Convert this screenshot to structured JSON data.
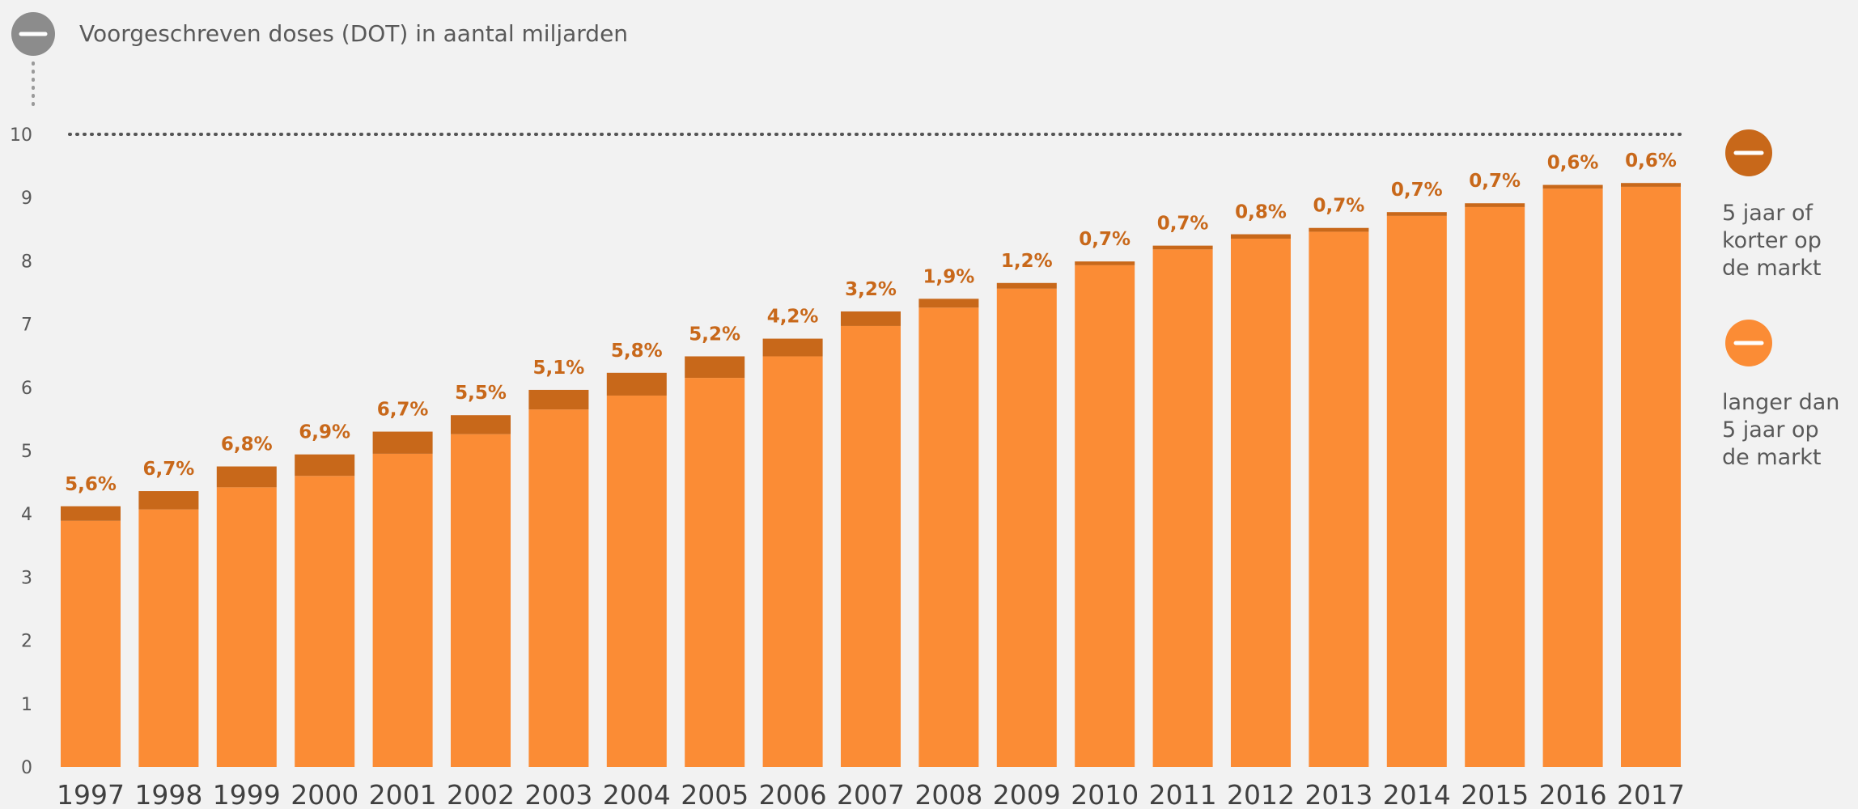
{
  "chart_data": {
    "type": "bar",
    "title": "Voorgeschreven doses (DOT) in aantal miljarden",
    "xlabel": "",
    "ylabel": "",
    "ylim": [
      0,
      10
    ],
    "yticks": [
      "0",
      "1",
      "2",
      "3",
      "4",
      "5",
      "6",
      "7",
      "8",
      "9",
      "10"
    ],
    "stacked": true,
    "grid": false,
    "legend_position": "right",
    "categories": [
      "1997",
      "1998",
      "1999",
      "2000",
      "2001",
      "2002",
      "2003",
      "2004",
      "2005",
      "2006",
      "2007",
      "2008",
      "2009",
      "2010",
      "2011",
      "2012",
      "2013",
      "2014",
      "2015",
      "2016",
      "2017"
    ],
    "series": [
      {
        "name": "langer dan 5 jaar op de markt",
        "color": "#fb8c35",
        "values": [
          3.89,
          4.07,
          4.42,
          4.6,
          4.95,
          5.26,
          5.65,
          5.87,
          6.15,
          6.49,
          6.97,
          7.26,
          7.56,
          7.93,
          8.18,
          8.35,
          8.46,
          8.71,
          8.85,
          9.14,
          9.17
        ]
      },
      {
        "name": "5 jaar of korter op de markt",
        "color": "#c8681a",
        "values": [
          0.23,
          0.29,
          0.33,
          0.34,
          0.35,
          0.3,
          0.31,
          0.36,
          0.34,
          0.28,
          0.23,
          0.14,
          0.09,
          0.06,
          0.06,
          0.07,
          0.06,
          0.06,
          0.06,
          0.06,
          0.06
        ]
      }
    ],
    "data_labels": [
      "5,6%",
      "6,7%",
      "6,8%",
      "6,9%",
      "6,7%",
      "5,5%",
      "5,1%",
      "5,8%",
      "5,2%",
      "4,2%",
      "3,2%",
      "1,9%",
      "1,2%",
      "0,7%",
      "0,7%",
      "0,8%",
      "0,7%",
      "0,7%",
      "0,7%",
      "0,6%",
      "0,6%"
    ],
    "legend": [
      {
        "label_lines": [
          "5 jaar of",
          "korter op",
          "de markt"
        ],
        "color": "#c8681a"
      },
      {
        "label_lines": [
          "langer dan",
          "5 jaar op",
          "de markt"
        ],
        "color": "#fb8c35"
      }
    ],
    "title_icon": {
      "name": "minus-circle-icon",
      "color": "#8c8c8c"
    }
  }
}
